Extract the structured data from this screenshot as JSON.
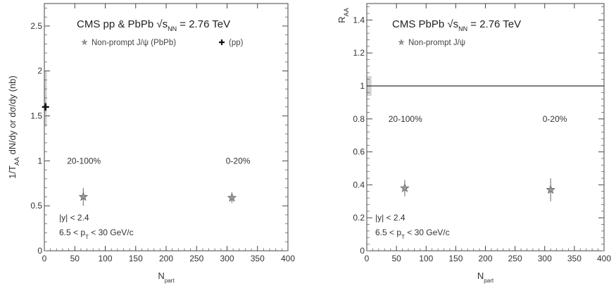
{
  "chart_data": [
    {
      "type": "scatter",
      "header": "CMS pp & PbPb",
      "energy": "= 2.76 TeV",
      "ylabel": "1/T_AA dN/dy or dσ/dy (nb)",
      "xlabel": "N_part",
      "xlim": [
        0,
        400
      ],
      "ylim": [
        0,
        2.75
      ],
      "x_ticks": [
        0,
        50,
        100,
        150,
        200,
        250,
        300,
        350,
        400
      ],
      "y_ticks": [
        0,
        0.5,
        1,
        1.5,
        2,
        2.5
      ],
      "y_tick_labels": [
        "0",
        "0.5",
        "1",
        "1.5",
        "2",
        "2.5"
      ],
      "legend": [
        {
          "marker": "star",
          "label": "Non-prompt J/ψ (PbPb)"
        },
        {
          "marker": "cross",
          "label": "(pp)"
        }
      ],
      "series": [
        {
          "name": "Non-prompt J/ψ (PbPb)",
          "marker": "star",
          "color": "#777777",
          "points": [
            {
              "x": 64,
              "y": 0.6,
              "err": 0.1
            },
            {
              "x": 308,
              "y": 0.59,
              "err": 0.06
            }
          ]
        },
        {
          "name": "(pp)",
          "marker": "cross",
          "color": "#111111",
          "points": [
            {
              "x": 2,
              "y": 1.6,
              "err": 0.05
            }
          ]
        }
      ],
      "syst_band": {
        "x": [
          0,
          4
        ],
        "y": [
          1.38,
          2.0
        ]
      },
      "centrality_labels": [
        {
          "text": "20-100%",
          "x": 65,
          "y": 1.0
        },
        {
          "text": "0-20%",
          "x": 318,
          "y": 1.0
        }
      ],
      "cuts": [
        "|y| < 2.4",
        "6.5 < p_T < 30 GeV/c"
      ]
    },
    {
      "type": "scatter",
      "header": "CMS PbPb",
      "energy": "= 2.76 TeV",
      "ylabel": "R_AA",
      "xlabel": "N_part",
      "xlim": [
        0,
        400
      ],
      "ylim": [
        0,
        1.5
      ],
      "x_ticks": [
        0,
        50,
        100,
        150,
        200,
        250,
        300,
        350,
        400
      ],
      "y_ticks": [
        0,
        0.2,
        0.4,
        0.6,
        0.8,
        1.0,
        1.2,
        1.4
      ],
      "y_tick_labels": [
        "0",
        "0.2",
        "0.4",
        "0.6",
        "0.8",
        "1",
        "1.2",
        "1.4"
      ],
      "legend": [
        {
          "marker": "star",
          "label": "Non-prompt J/ψ"
        }
      ],
      "series": [
        {
          "name": "Non-prompt J/ψ",
          "marker": "star",
          "color": "#777777",
          "points": [
            {
              "x": 64,
              "y": 0.38,
              "err": 0.05
            },
            {
              "x": 310,
              "y": 0.37,
              "err": 0.07
            }
          ]
        }
      ],
      "reference_line": 1.0,
      "syst_band": {
        "x": [
          0,
          8
        ],
        "y": [
          0.94,
          1.06
        ]
      },
      "centrality_labels": [
        {
          "text": "20-100%",
          "x": 65,
          "y": 0.8
        },
        {
          "text": "0-20%",
          "x": 317,
          "y": 0.8
        }
      ],
      "cuts": [
        "|y| < 2.4",
        "6.5 < p_T < 30 GeV/c"
      ]
    }
  ]
}
